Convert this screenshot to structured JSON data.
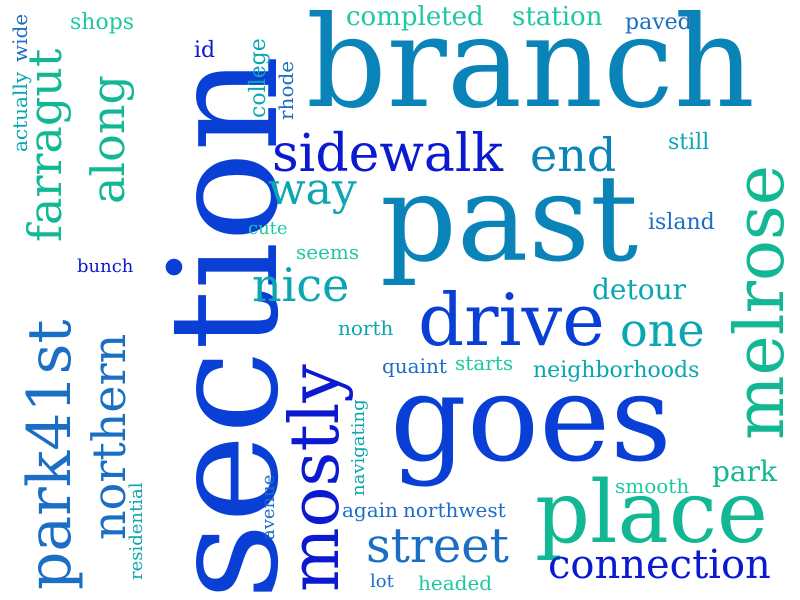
{
  "palette": {
    "royal_blue": "#0a3fd6",
    "deep_blue": "#0b1ad0",
    "teal_blue": "#0a84b8",
    "cyan_teal": "#0aa6b2",
    "sea_green": "#12b894",
    "mint_green": "#1fc9a0",
    "steel_blue": "#1a6fc4"
  },
  "words": [
    {
      "text": "section",
      "color": "royal_blue"
    },
    {
      "text": "branch",
      "color": "teal_blue"
    },
    {
      "text": "past",
      "color": "teal_blue"
    },
    {
      "text": "goes",
      "color": "royal_blue"
    },
    {
      "text": "place",
      "color": "sea_green"
    },
    {
      "text": "drive",
      "color": "royal_blue"
    },
    {
      "text": "melrose",
      "color": "sea_green"
    },
    {
      "text": "mostly",
      "color": "deep_blue"
    },
    {
      "text": "park41st",
      "color": "steel_blue"
    },
    {
      "text": "sidewalk",
      "color": "deep_blue"
    },
    {
      "text": "street",
      "color": "steel_blue"
    },
    {
      "text": "connection",
      "color": "deep_blue"
    },
    {
      "text": "northern",
      "color": "steel_blue"
    },
    {
      "text": "farragut",
      "color": "sea_green"
    },
    {
      "text": "along",
      "color": "sea_green"
    },
    {
      "text": "nice",
      "color": "cyan_teal"
    },
    {
      "text": "one",
      "color": "cyan_teal"
    },
    {
      "text": "way",
      "color": "cyan_teal"
    },
    {
      "text": "end",
      "color": "teal_blue"
    },
    {
      "text": "detour",
      "color": "cyan_teal"
    },
    {
      "text": "park",
      "color": "sea_green"
    },
    {
      "text": "completed",
      "color": "mint_green"
    },
    {
      "text": "station",
      "color": "mint_green"
    },
    {
      "text": "paved",
      "color": "steel_blue"
    },
    {
      "text": "shops",
      "color": "mint_green"
    },
    {
      "text": "id",
      "color": "deep_blue"
    },
    {
      "text": "college",
      "color": "cyan_teal"
    },
    {
      "text": "rhode",
      "color": "steel_blue"
    },
    {
      "text": "actually",
      "color": "cyan_teal"
    },
    {
      "text": "wide",
      "color": "steel_blue"
    },
    {
      "text": "still",
      "color": "cyan_teal"
    },
    {
      "text": "island",
      "color": "steel_blue"
    },
    {
      "text": "cute",
      "color": "mint_green"
    },
    {
      "text": "seems",
      "color": "mint_green"
    },
    {
      "text": "bunch",
      "color": "deep_blue"
    },
    {
      "text": "north",
      "color": "cyan_teal"
    },
    {
      "text": "quaint",
      "color": "steel_blue"
    },
    {
      "text": "starts",
      "color": "mint_green"
    },
    {
      "text": "neighborhoods",
      "color": "cyan_teal"
    },
    {
      "text": "navigating",
      "color": "cyan_teal"
    },
    {
      "text": "smooth",
      "color": "mint_green"
    },
    {
      "text": "avenue",
      "color": "steel_blue"
    },
    {
      "text": "residential",
      "color": "cyan_teal"
    },
    {
      "text": "again",
      "color": "steel_blue"
    },
    {
      "text": "northwest",
      "color": "steel_blue"
    },
    {
      "text": "lot",
      "color": "steel_blue"
    },
    {
      "text": "headed",
      "color": "mint_green"
    }
  ]
}
